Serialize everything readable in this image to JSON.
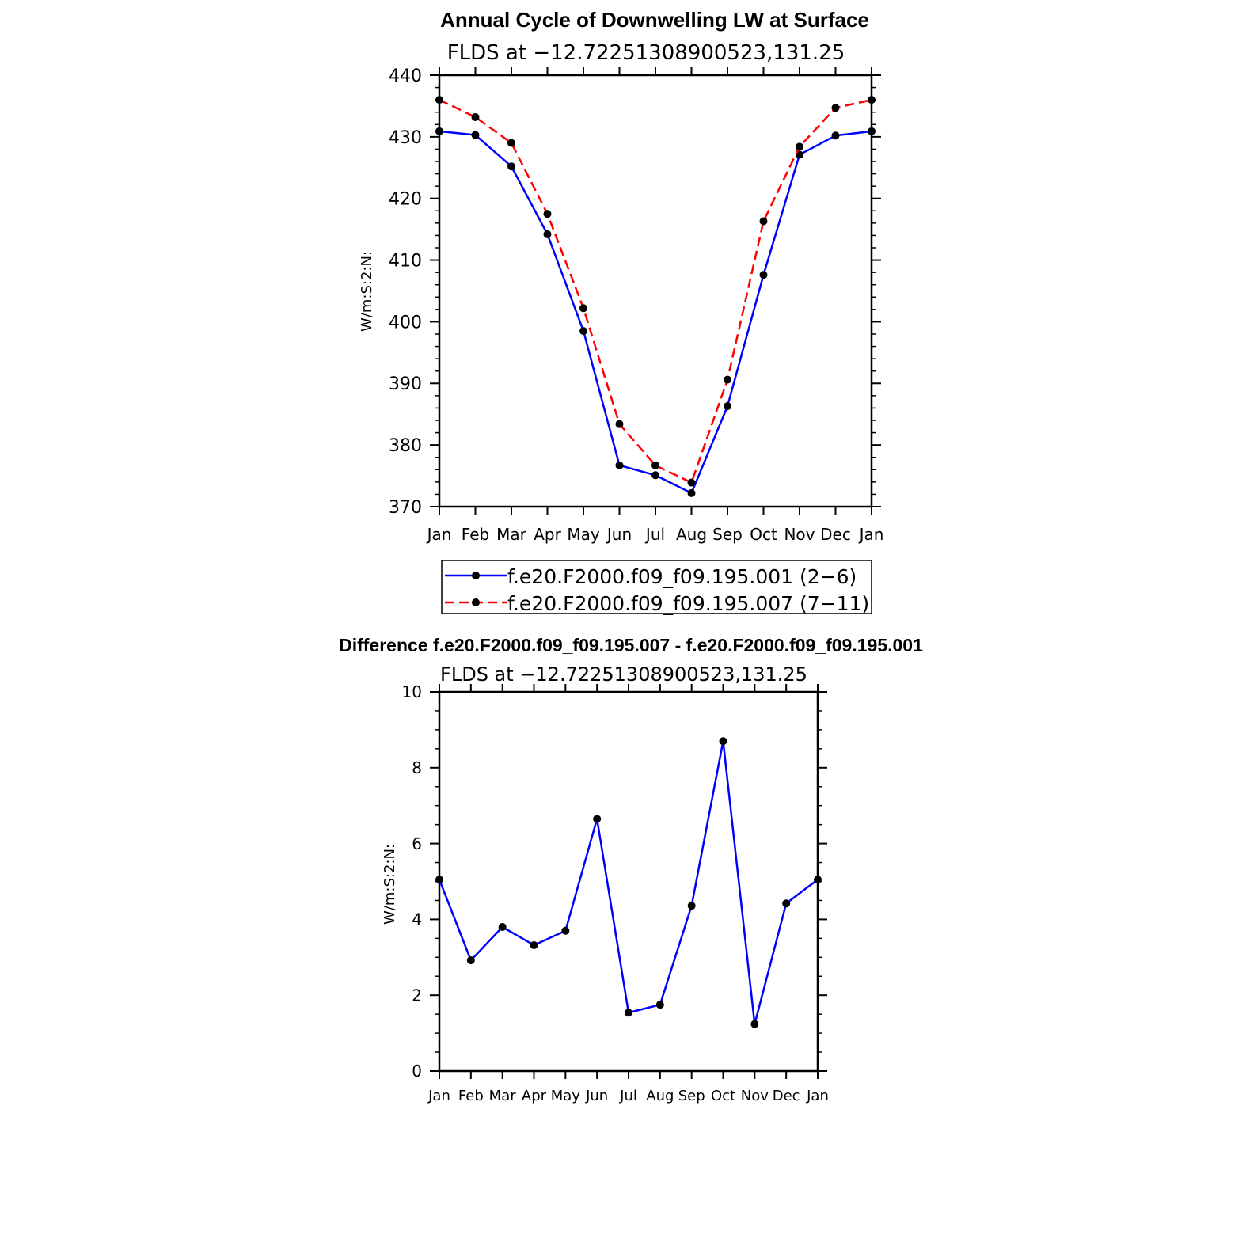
{
  "chart_data": [
    {
      "type": "line",
      "title": "Annual Cycle of Downwelling LW at Surface",
      "subtitle": "FLDS at −12.72251308900523,131.25",
      "ylabel": "W/m:S:2:N:",
      "xlabel": "",
      "categories": [
        "Jan",
        "Feb",
        "Mar",
        "Apr",
        "May",
        "Jun",
        "Jul",
        "Aug",
        "Sep",
        "Oct",
        "Nov",
        "Dec",
        "Jan"
      ],
      "ylim": [
        370,
        440
      ],
      "yticks": [
        370,
        380,
        390,
        400,
        410,
        420,
        430,
        440
      ],
      "ytick_labels": [
        "370",
        "380",
        "390",
        "400",
        "410",
        "420",
        "430",
        "440"
      ],
      "legend_position": "bottom",
      "series": [
        {
          "name": "f.e20.F2000.f09_f09.195.001 (2−6)",
          "color": "#0000ff",
          "dash": "solid",
          "values": [
            430.9,
            430.3,
            425.2,
            414.2,
            398.5,
            376.7,
            375.1,
            372.2,
            386.3,
            407.6,
            427.1,
            430.2,
            430.9
          ]
        },
        {
          "name": "f.e20.F2000.f09_f09.195.007 (7−11)",
          "color": "#ff0000",
          "dash": "dashed",
          "values": [
            436.0,
            433.2,
            429.0,
            417.5,
            402.2,
            383.4,
            376.7,
            373.9,
            390.6,
            416.3,
            428.4,
            434.7,
            436.0
          ]
        }
      ]
    },
    {
      "type": "line",
      "title": "Difference f.e20.F2000.f09_f09.195.007 - f.e20.F2000.f09_f09.195.001",
      "subtitle": "FLDS at −12.72251308900523,131.25",
      "ylabel": "W/m:S:2:N:",
      "xlabel": "",
      "categories": [
        "Jan",
        "Feb",
        "Mar",
        "Apr",
        "May",
        "Jun",
        "Jul",
        "Aug",
        "Sep",
        "Oct",
        "Nov",
        "Dec",
        "Jan"
      ],
      "ylim": [
        0,
        10
      ],
      "yticks": [
        0,
        2,
        4,
        6,
        8,
        10
      ],
      "ytick_labels": [
        "0",
        "2",
        "4",
        "6",
        "8",
        "10"
      ],
      "series": [
        {
          "name": "Difference",
          "color": "#0000ff",
          "dash": "solid",
          "values": [
            5.05,
            2.92,
            3.8,
            3.32,
            3.7,
            6.65,
            1.54,
            1.75,
            4.36,
            8.7,
            1.24,
            4.42,
            5.05
          ]
        }
      ]
    }
  ]
}
